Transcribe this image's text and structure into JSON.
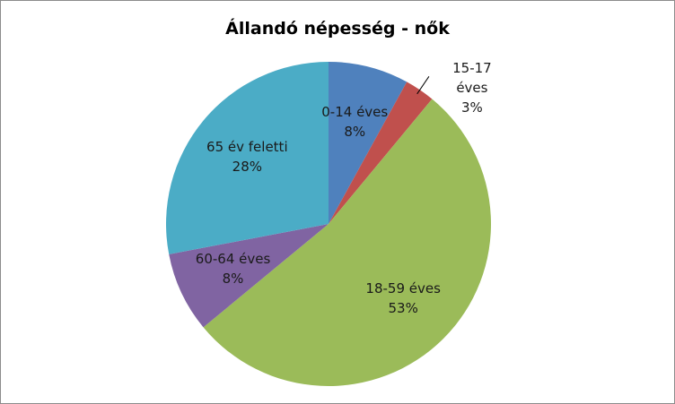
{
  "chart_data": {
    "type": "pie",
    "title": "Állandó népesség - nők",
    "categories": [
      "0-14 éves",
      "15-17 éves",
      "18-59 éves",
      "60-64 éves",
      "65 év feletti"
    ],
    "values": [
      8,
      3,
      53,
      8,
      28
    ],
    "value_labels": [
      "8%",
      "3%",
      "53%",
      "8%",
      "28%"
    ],
    "colors": [
      "#4f81bd",
      "#c0504d",
      "#9bbb59",
      "#8064a2",
      "#4bacc6"
    ]
  }
}
